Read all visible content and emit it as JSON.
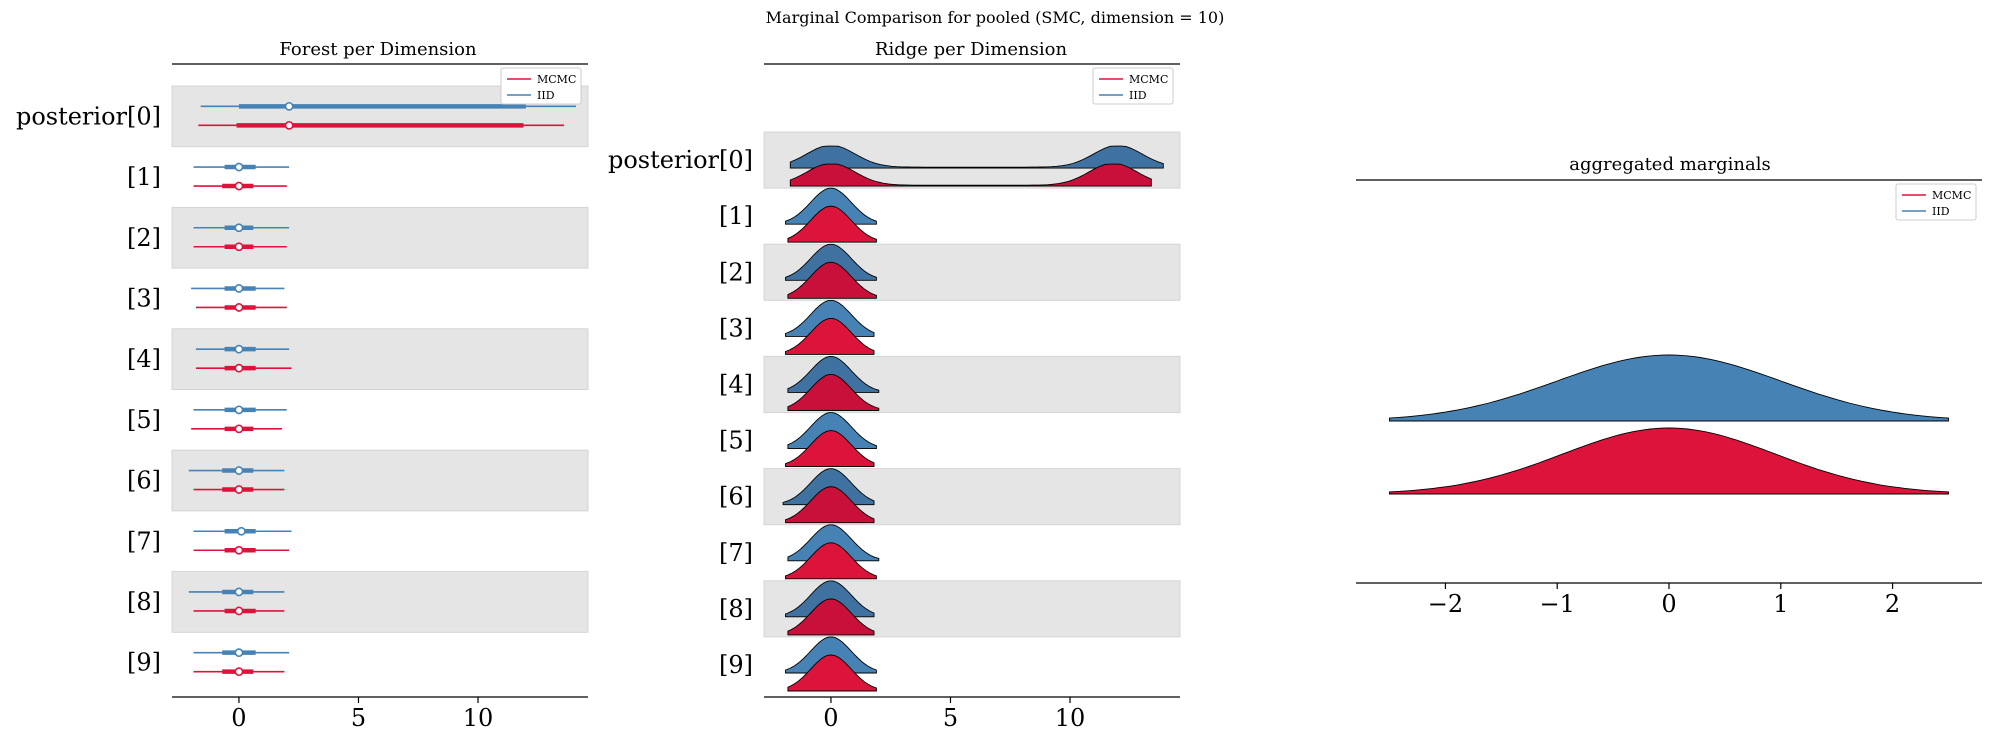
{
  "figure": {
    "suptitle": "Marginal Comparison for pooled (SMC, dimension = 10)"
  },
  "colors": {
    "mcmc": "#dc143c",
    "mcmc_dark": "#c8103a",
    "iid": "#4682b4",
    "iid_dark": "#3f72a0",
    "band": "#e5e5e5"
  },
  "chart_data": [
    {
      "type": "forest",
      "title": "Forest per Dimension",
      "xlim": [
        -2.8,
        14.6
      ],
      "xticks": [
        0,
        5,
        10
      ],
      "xtick_labels": [
        "0",
        "5",
        "10"
      ],
      "legend": {
        "placement": "top-right",
        "entries": [
          "MCMC",
          "IID"
        ]
      },
      "rows": [
        "posterior[0]",
        "[1]",
        "[2]",
        "[3]",
        "[4]",
        "[5]",
        "[6]",
        "[7]",
        "[8]",
        "[9]"
      ],
      "series": [
        {
          "name": "IID",
          "color_key": "iid",
          "points": [
            {
              "hdi94": [
                -1.6,
                14.1
              ],
              "hdi50": [
                0.0,
                12.0
              ],
              "median": 2.1
            },
            {
              "hdi94": [
                -1.9,
                2.1
              ],
              "hdi50": [
                -0.6,
                0.7
              ],
              "median": 0.0
            },
            {
              "hdi94": [
                -1.9,
                2.1
              ],
              "hdi50": [
                -0.6,
                0.6
              ],
              "median": 0.0
            },
            {
              "hdi94": [
                -2.0,
                1.9
              ],
              "hdi50": [
                -0.6,
                0.7
              ],
              "median": 0.0
            },
            {
              "hdi94": [
                -1.8,
                2.1
              ],
              "hdi50": [
                -0.6,
                0.7
              ],
              "median": 0.0
            },
            {
              "hdi94": [
                -1.9,
                2.0
              ],
              "hdi50": [
                -0.6,
                0.7
              ],
              "median": 0.0
            },
            {
              "hdi94": [
                -2.1,
                1.9
              ],
              "hdi50": [
                -0.7,
                0.6
              ],
              "median": 0.0
            },
            {
              "hdi94": [
                -1.9,
                2.2
              ],
              "hdi50": [
                -0.6,
                0.7
              ],
              "median": 0.1
            },
            {
              "hdi94": [
                -2.1,
                1.9
              ],
              "hdi50": [
                -0.7,
                0.6
              ],
              "median": 0.0
            },
            {
              "hdi94": [
                -1.9,
                2.1
              ],
              "hdi50": [
                -0.7,
                0.7
              ],
              "median": 0.0
            }
          ]
        },
        {
          "name": "MCMC",
          "color_key": "mcmc",
          "points": [
            {
              "hdi94": [
                -1.7,
                13.6
              ],
              "hdi50": [
                -0.1,
                11.9
              ],
              "median": 2.1
            },
            {
              "hdi94": [
                -1.9,
                2.0
              ],
              "hdi50": [
                -0.7,
                0.6
              ],
              "median": 0.0
            },
            {
              "hdi94": [
                -1.9,
                2.0
              ],
              "hdi50": [
                -0.6,
                0.6
              ],
              "median": 0.0
            },
            {
              "hdi94": [
                -1.8,
                2.0
              ],
              "hdi50": [
                -0.6,
                0.7
              ],
              "median": 0.0
            },
            {
              "hdi94": [
                -1.8,
                2.2
              ],
              "hdi50": [
                -0.6,
                0.7
              ],
              "median": 0.0
            },
            {
              "hdi94": [
                -2.0,
                1.8
              ],
              "hdi50": [
                -0.6,
                0.6
              ],
              "median": 0.0
            },
            {
              "hdi94": [
                -1.9,
                1.9
              ],
              "hdi50": [
                -0.7,
                0.6
              ],
              "median": 0.0
            },
            {
              "hdi94": [
                -1.9,
                2.1
              ],
              "hdi50": [
                -0.6,
                0.7
              ],
              "median": 0.0
            },
            {
              "hdi94": [
                -1.9,
                1.9
              ],
              "hdi50": [
                -0.6,
                0.7
              ],
              "median": 0.0
            },
            {
              "hdi94": [
                -1.9,
                1.9
              ],
              "hdi50": [
                -0.7,
                0.6
              ],
              "median": 0.0
            }
          ]
        }
      ]
    },
    {
      "type": "ridge",
      "title": "Ridge per Dimension",
      "xlim": [
        -2.8,
        14.6
      ],
      "xticks": [
        0,
        5,
        10
      ],
      "xtick_labels": [
        "0",
        "5",
        "10"
      ],
      "legend": {
        "placement": "top-right",
        "entries": [
          "MCMC",
          "IID"
        ]
      },
      "rows": [
        "posterior[0]",
        "[1]",
        "[2]",
        "[3]",
        "[4]",
        "[5]",
        "[6]",
        "[7]",
        "[8]",
        "[9]"
      ],
      "ridges": [
        {
          "row": 0,
          "iid": {
            "mode": "bimodal",
            "modes": [
              0.0,
              12.0
            ],
            "sd": 1.0,
            "range": [
              -1.7,
              13.9
            ]
          },
          "mcmc": {
            "mode": "bimodal",
            "modes": [
              0.0,
              11.8
            ],
            "sd": 1.0,
            "range": [
              -1.7,
              13.4
            ]
          }
        },
        {
          "row": 1,
          "iid": {
            "center": 0.0,
            "range": [
              -1.9,
              1.9
            ]
          },
          "mcmc": {
            "center": 0.0,
            "range": [
              -1.8,
              1.9
            ]
          }
        },
        {
          "row": 2,
          "iid": {
            "center": 0.0,
            "range": [
              -1.9,
              1.9
            ]
          },
          "mcmc": {
            "center": 0.0,
            "range": [
              -1.8,
              1.9
            ]
          }
        },
        {
          "row": 3,
          "iid": {
            "center": 0.0,
            "range": [
              -1.9,
              1.8
            ]
          },
          "mcmc": {
            "center": 0.0,
            "range": [
              -1.9,
              1.8
            ]
          }
        },
        {
          "row": 4,
          "iid": {
            "center": 0.0,
            "range": [
              -1.8,
              2.0
            ]
          },
          "mcmc": {
            "center": 0.0,
            "range": [
              -1.8,
              2.0
            ]
          }
        },
        {
          "row": 5,
          "iid": {
            "center": 0.0,
            "range": [
              -1.8,
              1.9
            ]
          },
          "mcmc": {
            "center": 0.0,
            "range": [
              -1.9,
              1.8
            ]
          }
        },
        {
          "row": 6,
          "iid": {
            "center": 0.0,
            "range": [
              -2.0,
              1.8
            ]
          },
          "mcmc": {
            "center": 0.0,
            "range": [
              -1.9,
              1.8
            ]
          }
        },
        {
          "row": 7,
          "iid": {
            "center": 0.0,
            "range": [
              -1.8,
              2.0
            ]
          },
          "mcmc": {
            "center": 0.0,
            "range": [
              -1.9,
              1.9
            ]
          }
        },
        {
          "row": 8,
          "iid": {
            "center": 0.0,
            "range": [
              -1.9,
              1.8
            ]
          },
          "mcmc": {
            "center": 0.0,
            "range": [
              -1.8,
              1.8
            ]
          }
        },
        {
          "row": 9,
          "iid": {
            "center": 0.0,
            "range": [
              -1.9,
              1.9
            ]
          },
          "mcmc": {
            "center": 0.0,
            "range": [
              -1.8,
              1.9
            ]
          }
        }
      ]
    },
    {
      "type": "ridge",
      "title": "aggregated marginals",
      "xlim": [
        -2.8,
        2.8
      ],
      "xticks": [
        -2,
        -1,
        0,
        1,
        2
      ],
      "xtick_labels": [
        "−2",
        "−1",
        "0",
        "1",
        "2"
      ],
      "legend": {
        "placement": "top-right",
        "entries": [
          "MCMC",
          "IID"
        ]
      },
      "series": [
        {
          "name": "IID",
          "color_key": "iid",
          "center": 0.0,
          "sd": 1.0,
          "range": [
            -2.5,
            2.5
          ]
        },
        {
          "name": "MCMC",
          "color_key": "mcmc",
          "center": 0.0,
          "sd": 0.95,
          "range": [
            -2.5,
            2.5
          ]
        }
      ]
    }
  ]
}
